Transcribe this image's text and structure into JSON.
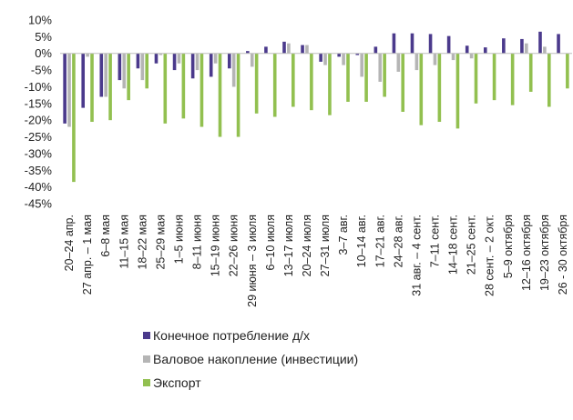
{
  "chart_data": {
    "type": "bar",
    "title": "",
    "xlabel": "",
    "ylabel": "",
    "ylim": [
      -45,
      10
    ],
    "yticks": [
      10,
      5,
      0,
      -5,
      -10,
      -15,
      -20,
      -25,
      -30,
      -35,
      -40,
      -45
    ],
    "ytick_labels": [
      "10%",
      "5%",
      "0%",
      "-5%",
      "-10%",
      "-15%",
      "-20%",
      "-25%",
      "-30%",
      "-35%",
      "-40%",
      "-45%"
    ],
    "grid": false,
    "legend_position": "bottom",
    "categories": [
      "20–24 апр.",
      "27 апр. – 1 мая",
      "6–8 мая",
      "11–15 мая",
      "18–22 мая",
      "25–29 мая",
      "1–5 июня",
      "8–11 июня",
      "15–19 июня",
      "22–26 июня",
      "29 июня – 3 июля",
      "6–10 июля",
      "13–17 июля",
      "20–24 июля",
      "27–31 июля",
      "3–7 авг.",
      "10–14 авг.",
      "17–21 авг.",
      "24–28 авг.",
      "31 авг. – 4 сент.",
      "7–11 сент.",
      "14–18 сент.",
      "21–25 сент.",
      "28 сент. – 2 окт.",
      "5–9 октября",
      "12–16 октября",
      "19–23 октября",
      "26 - 30 октября"
    ],
    "series": [
      {
        "name": "Конечное потребление д/х",
        "color": "#4B3A8C",
        "values": [
          -21,
          -16.3,
          -13,
          -8,
          -4.5,
          -3,
          -5,
          -7.5,
          -7,
          -4.5,
          0.7,
          2,
          3.5,
          2.5,
          -2.5,
          -1,
          -0.5,
          2,
          6,
          6,
          5.8,
          5.2,
          2.3,
          1.8,
          4.5,
          4.3,
          6.5,
          5.8
        ]
      },
      {
        "name": "Валовое накопление (инвестиции)",
        "color": "#B5B5B5",
        "values": [
          -22,
          -1,
          -13,
          -10.5,
          -8,
          -0.5,
          -3,
          -5,
          -3,
          -10,
          -4,
          0,
          3,
          2.5,
          -3.5,
          -3.5,
          -7,
          -8.5,
          -5.5,
          -5,
          -3.5,
          -2,
          -1.5,
          0,
          0,
          3,
          2,
          0
        ]
      },
      {
        "name": "Экспорт",
        "color": "#92C050",
        "values": [
          -38.5,
          -20.5,
          -20,
          -14,
          -10.5,
          -21,
          -19.5,
          -22,
          -25,
          -25,
          -18,
          -19,
          -16,
          -17,
          -18.5,
          -14.5,
          -14.5,
          -13,
          -17.5,
          -21.5,
          -20.5,
          -22.5,
          -15,
          -14,
          -15.5,
          -11.5,
          -16,
          -10.5
        ]
      }
    ]
  }
}
